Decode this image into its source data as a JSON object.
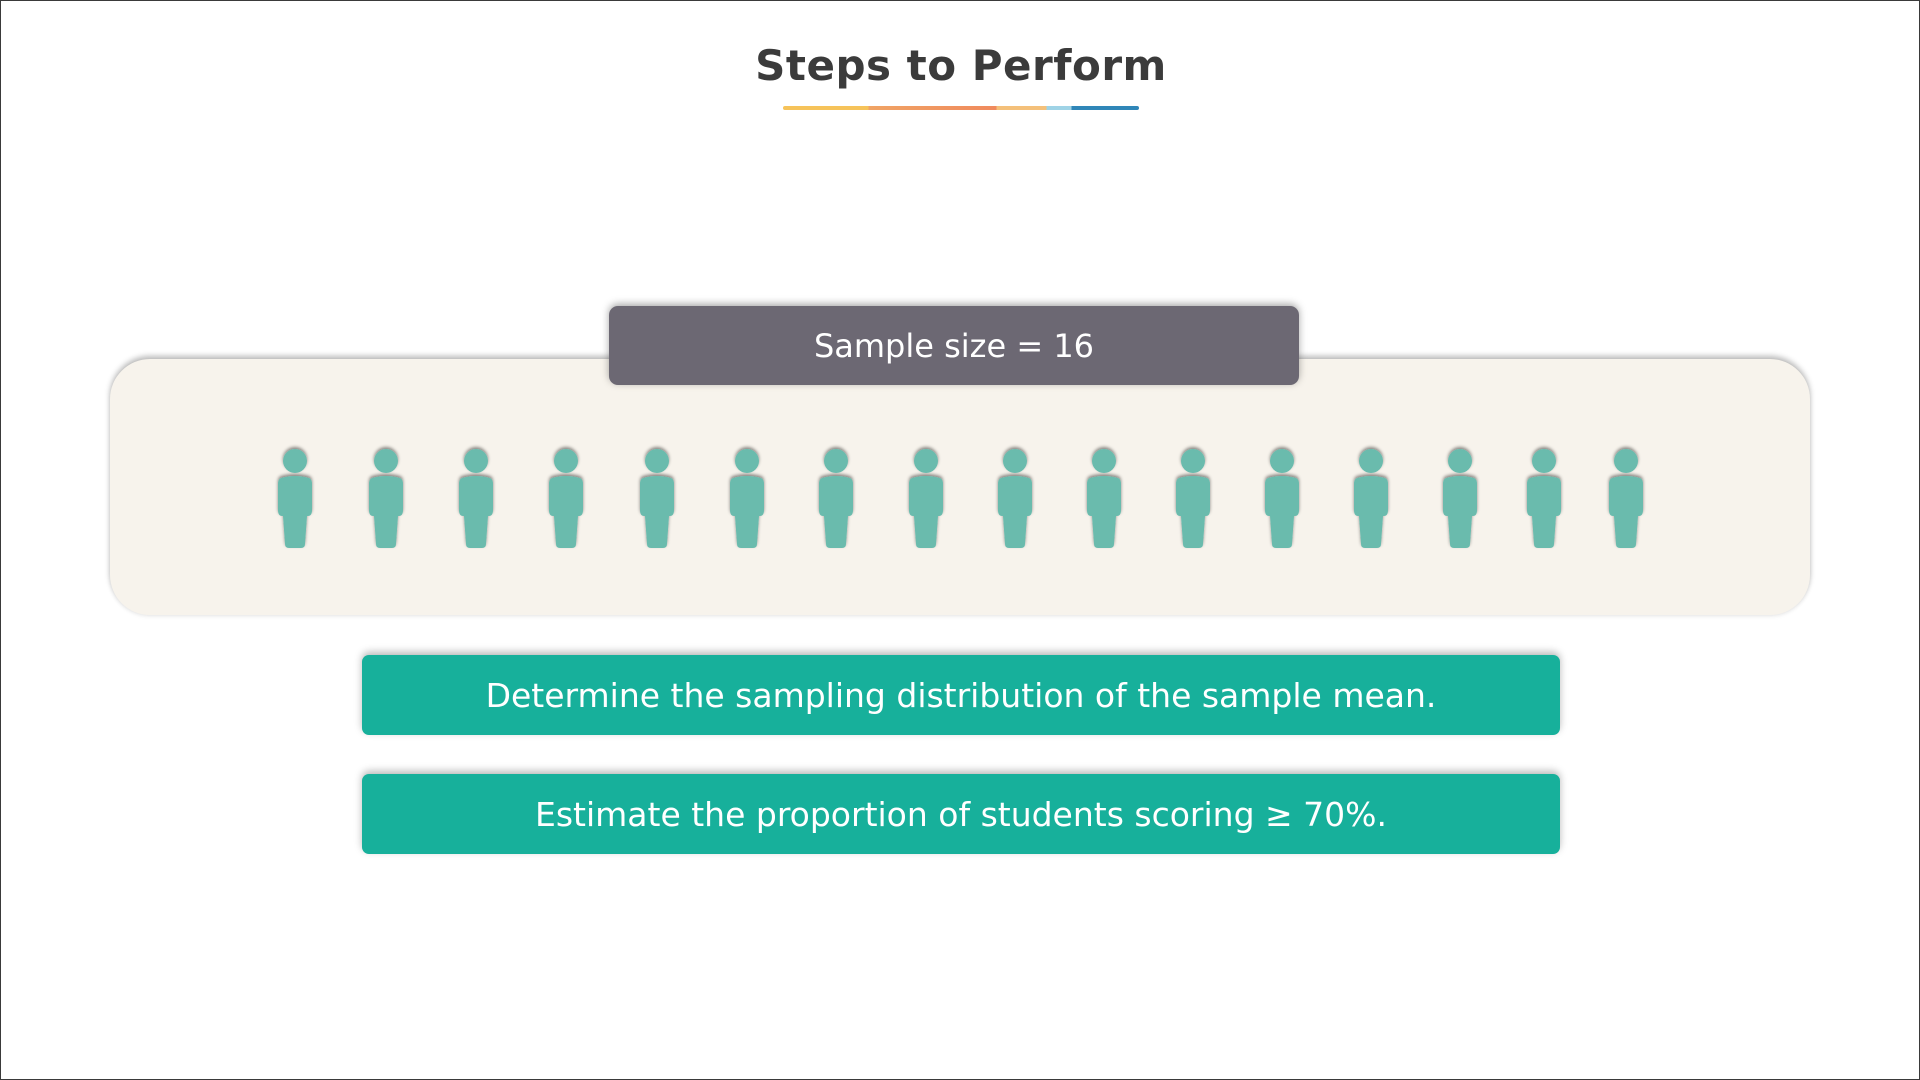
{
  "slide": {
    "title": "Steps to Perform",
    "sample_label": "Sample size = 16",
    "person_icon": "person-icon",
    "person_color": "#6abbad",
    "people_count": 16,
    "steps": [
      {
        "label": "Determine the sampling distribution of the sample mean."
      },
      {
        "label": "Estimate the proportion of students scoring ≥ 70%."
      }
    ],
    "colors": {
      "step_bg": "#17b09b",
      "badge_bg": "#6c6873",
      "panel_bg": "#f7f3ec",
      "title": "#3b3b3b"
    }
  }
}
